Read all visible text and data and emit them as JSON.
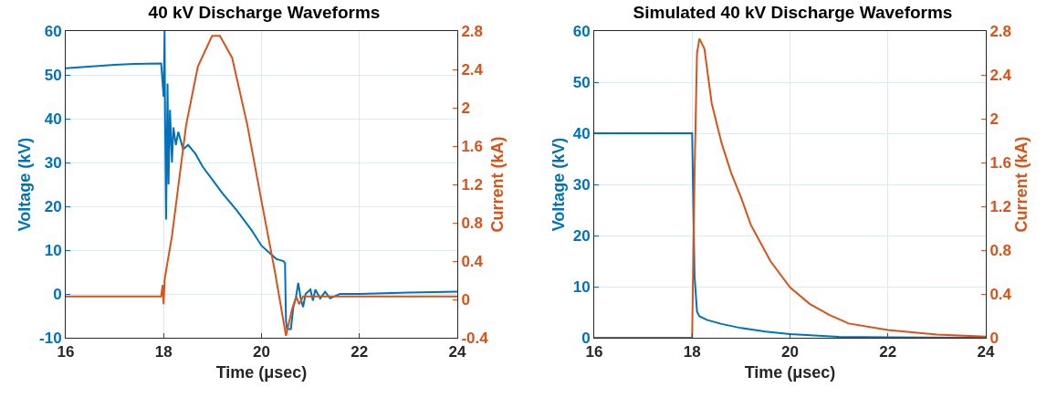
{
  "chart_data": [
    {
      "type": "line",
      "title": "40 kV Discharge Waveforms",
      "xlabel": "Time (μsec)",
      "ylabel": "Voltage (kV)",
      "y2label": "Current (kA)",
      "xlim": [
        16,
        24
      ],
      "xticks": [
        16,
        18,
        20,
        22,
        24
      ],
      "ylim": [
        -10,
        60
      ],
      "yticks": [
        -10,
        0,
        10,
        20,
        30,
        40,
        50,
        60
      ],
      "y2lim": [
        -0.4,
        2.8
      ],
      "y2ticks": [
        -0.4,
        0,
        0.4,
        0.8,
        1.2,
        1.6,
        2,
        2.4,
        2.8
      ],
      "grid": true,
      "series": [
        {
          "color": "#0072bd",
          "x": [
            16,
            17,
            17.4,
            17.95,
            18,
            18.02,
            18.03,
            18.05,
            18.08,
            18.1,
            18.13,
            18.17,
            18.2,
            18.25,
            18.3,
            18.4,
            18.5,
            18.65,
            18.8,
            19,
            19.2,
            19.5,
            19.8,
            20,
            20.2,
            20.3,
            20.45,
            20.48,
            20.5,
            20.52,
            20.6,
            20.65,
            20.7,
            20.75,
            20.8,
            20.85,
            20.9,
            21,
            21.05,
            21.1,
            21.2,
            21.3,
            21.4,
            21.6,
            22,
            23,
            24
          ],
          "values": [
            51.5,
            52.3,
            52.5,
            52.6,
            45,
            60,
            40,
            17,
            48,
            25,
            42,
            30,
            38,
            34,
            37,
            33,
            34,
            32,
            29,
            26,
            23,
            19,
            14.5,
            11,
            9,
            8,
            7.5,
            7,
            -6,
            -8,
            -8,
            -3,
            -1,
            2.5,
            -1,
            -3,
            0,
            1,
            -1.5,
            1,
            -1,
            0.5,
            -1,
            0,
            0,
            0.3,
            0.5
          ]
        },
        {
          "color": "#d95319",
          "axis": "y2",
          "x": [
            16,
            17.95,
            17.98,
            18,
            18.02,
            18.05,
            18.08,
            18.17,
            18.27,
            18.46,
            18.7,
            18.99,
            19.15,
            19.4,
            19.71,
            20.02,
            20.27,
            20.5,
            20.62,
            20.71,
            20.77,
            20.85,
            21,
            22,
            24
          ],
          "values": [
            0.03,
            0.03,
            0.15,
            -0.05,
            0.2,
            0.3,
            0.39,
            0.66,
            1.06,
            1.82,
            2.43,
            2.75,
            2.75,
            2.52,
            1.82,
            0.97,
            0.3,
            -0.38,
            -0.11,
            0.03,
            -0.05,
            0.03,
            0.03,
            0.03,
            0.03
          ]
        }
      ]
    },
    {
      "type": "line",
      "title": "Simulated 40 kV Discharge Waveforms",
      "xlabel": "Time (μsec)",
      "ylabel": "Voltage (kV)",
      "y2label": "Current (kA)",
      "xlim": [
        16,
        24
      ],
      "xticks": [
        16,
        18,
        20,
        22,
        24
      ],
      "ylim": [
        0,
        60
      ],
      "yticks": [
        0,
        10,
        20,
        30,
        40,
        50,
        60
      ],
      "y2lim": [
        0,
        2.8
      ],
      "y2ticks": [
        0,
        0.4,
        0.8,
        1.2,
        1.6,
        2,
        2.4,
        2.8
      ],
      "grid": true,
      "series": [
        {
          "color": "#0072bd",
          "x": [
            16,
            18,
            18.05,
            18.1,
            18.15,
            18.3,
            18.6,
            19,
            19.5,
            20,
            21,
            22,
            24
          ],
          "values": [
            40,
            40,
            12,
            5.1,
            4.2,
            3.5,
            2.7,
            1.9,
            1.2,
            0.7,
            0.2,
            0.1,
            0
          ]
        },
        {
          "color": "#d95319",
          "axis": "y2",
          "x": [
            16,
            18,
            18.05,
            18.1,
            18.15,
            18.25,
            18.4,
            18.6,
            18.8,
            19,
            19.2,
            19.6,
            20,
            20.4,
            20.8,
            21.2,
            22,
            23,
            24
          ],
          "values": [
            0,
            0,
            1.5,
            2.6,
            2.73,
            2.64,
            2.14,
            1.78,
            1.5,
            1.28,
            1.03,
            0.7,
            0.46,
            0.31,
            0.21,
            0.13,
            0.07,
            0.03,
            0.01
          ]
        }
      ]
    }
  ]
}
